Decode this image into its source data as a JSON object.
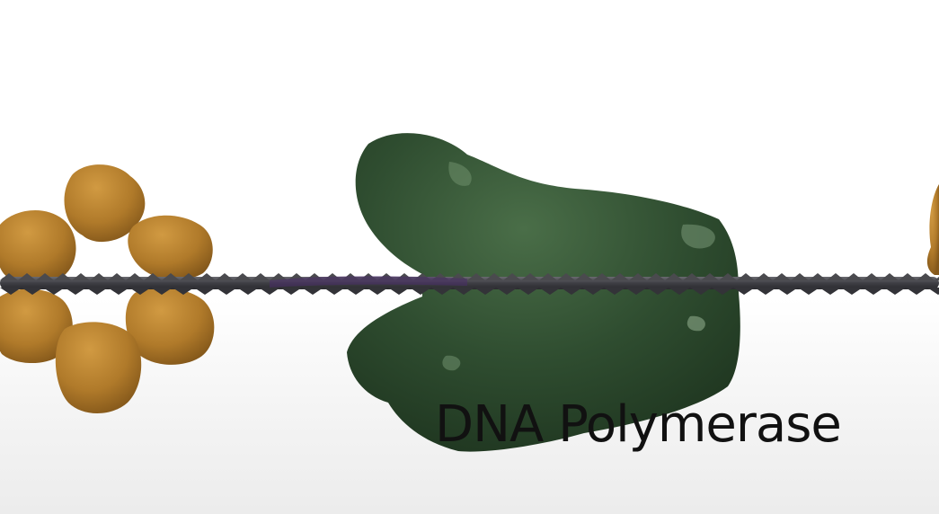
{
  "caption": {
    "text": "DNA Polymerase"
  },
  "colors": {
    "background": "#ffffff",
    "polymerase": "#2e4a2e",
    "clamp_protein": "#b07a2a",
    "dna_strand": "#4a4a4e",
    "caption_text": "#111111"
  }
}
